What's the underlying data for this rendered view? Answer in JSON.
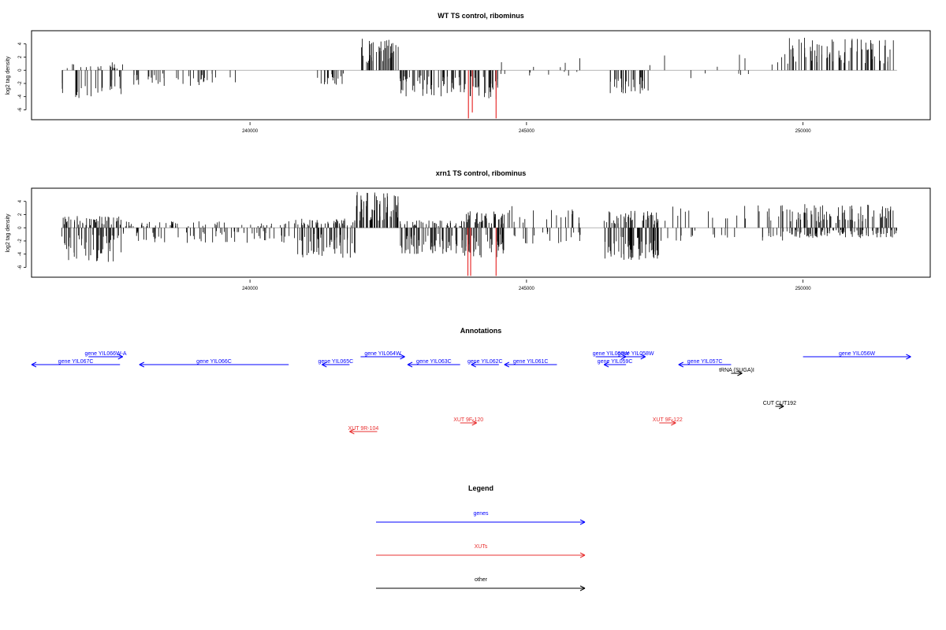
{
  "chart_data": [
    {
      "type": "bar",
      "title": "WT TS control, ribominus",
      "ylabel": "log2 tag density",
      "ylim": [
        -7.5,
        6
      ],
      "yticks": [
        "-6",
        "-4",
        "-2",
        "0",
        "2",
        "4"
      ],
      "xlim": [
        236050,
        252300
      ],
      "xticks": [
        "240000",
        "245000",
        "250000"
      ],
      "clusters": [
        {
          "start": 236600,
          "end": 237700,
          "density": 0.55,
          "minVal": -4.5,
          "maxVal": 1.2
        },
        {
          "start": 237700,
          "end": 239800,
          "density": 0.25,
          "minVal": -2.4,
          "maxVal": 0
        },
        {
          "start": 241200,
          "end": 241700,
          "density": 0.5,
          "minVal": -2.2,
          "maxVal": 0
        },
        {
          "start": 242000,
          "end": 242700,
          "density": 0.8,
          "minVal": 0,
          "maxVal": 4.8
        },
        {
          "start": 242700,
          "end": 243900,
          "density": 0.6,
          "minVal": -4.0,
          "maxVal": 0
        },
        {
          "start": 243900,
          "end": 244500,
          "density": 0.7,
          "minVal": -4.5,
          "maxVal": 0
        },
        {
          "start": 244500,
          "end": 246000,
          "density": 0.12,
          "minVal": -1.2,
          "maxVal": 2.0
        },
        {
          "start": 246500,
          "end": 247200,
          "density": 0.6,
          "minVal": -3.8,
          "maxVal": 0
        },
        {
          "start": 247200,
          "end": 249700,
          "density": 0.08,
          "minVal": -1.2,
          "maxVal": 2.6
        },
        {
          "start": 249700,
          "end": 251700,
          "density": 0.5,
          "minVal": 0,
          "maxVal": 5.0
        }
      ],
      "highlights": [
        {
          "x": 243950,
          "value": -7.3
        },
        {
          "x": 244020,
          "value": -6.4
        },
        {
          "x": 244450,
          "value": -7.3
        }
      ],
      "colors": {
        "bars": "#000000",
        "highlight": "#e83030",
        "axis": "#888888"
      }
    },
    {
      "type": "bar",
      "title": "xrn1 TS control, ribominus",
      "ylabel": "log2 tag density",
      "ylim": [
        -7.5,
        6
      ],
      "yticks": [
        "-6",
        "-4",
        "-2",
        "0",
        "2",
        "4"
      ],
      "xlim": [
        236050,
        252300
      ],
      "xticks": [
        "240000",
        "245000",
        "250000"
      ],
      "clusters": [
        {
          "start": 236600,
          "end": 237700,
          "density": 1.2,
          "minVal": -5.3,
          "maxVal": 1.8
        },
        {
          "start": 237700,
          "end": 240800,
          "density": 0.5,
          "minVal": -2.3,
          "maxVal": 1.0
        },
        {
          "start": 240800,
          "end": 241900,
          "density": 1.2,
          "minVal": -4.6,
          "maxVal": 1.4
        },
        {
          "start": 241900,
          "end": 242700,
          "density": 1.0,
          "minVal": 0,
          "maxVal": 5.5
        },
        {
          "start": 242700,
          "end": 243900,
          "density": 1.2,
          "minVal": -4.3,
          "maxVal": 1.2
        },
        {
          "start": 243900,
          "end": 244600,
          "density": 1.5,
          "minVal": -4.5,
          "maxVal": 2.6
        },
        {
          "start": 244600,
          "end": 246000,
          "density": 0.4,
          "minVal": -2.4,
          "maxVal": 3.4
        },
        {
          "start": 246400,
          "end": 247400,
          "density": 1.5,
          "minVal": -5.0,
          "maxVal": 2.6
        },
        {
          "start": 247400,
          "end": 249700,
          "density": 0.3,
          "minVal": -2.0,
          "maxVal": 3.5
        },
        {
          "start": 249700,
          "end": 251700,
          "density": 1.2,
          "minVal": -1.6,
          "maxVal": 3.6
        }
      ],
      "highlights": [
        {
          "x": 243940,
          "value": -7.3
        },
        {
          "x": 243990,
          "value": -7.3
        },
        {
          "x": 244450,
          "value": -7.3
        }
      ],
      "colors": {
        "bars": "#000000",
        "highlight": "#e83030",
        "axis": "#888888"
      }
    }
  ],
  "annotations": {
    "title": "Annotations",
    "items": [
      {
        "label": "gene YIL067C",
        "start": 237650,
        "end": 236050,
        "dir": "left",
        "color": "#0000ff",
        "row": "upper2"
      },
      {
        "label": "gene YIL066W-A",
        "start": 237080,
        "end": 237700,
        "dir": "right",
        "color": "#0000ff",
        "row": "upper1"
      },
      {
        "label": "gene YIL066C",
        "start": 240700,
        "end": 238000,
        "dir": "left",
        "color": "#0000ff",
        "row": "upper2"
      },
      {
        "label": "gene YIL065C",
        "start": 241800,
        "end": 241300,
        "dir": "left",
        "color": "#0000ff",
        "row": "upper2"
      },
      {
        "label": "gene YIL064W",
        "start": 242000,
        "end": 242800,
        "dir": "right",
        "color": "#0000ff",
        "row": "upper1"
      },
      {
        "label": "gene YIL063C",
        "start": 243800,
        "end": 242850,
        "dir": "left",
        "color": "#0000ff",
        "row": "upper2"
      },
      {
        "label": "gene YIL062C",
        "start": 244500,
        "end": 244000,
        "dir": "left",
        "color": "#0000ff",
        "row": "upper2"
      },
      {
        "label": "gene YIL061C",
        "start": 245550,
        "end": 244600,
        "dir": "left",
        "color": "#0000ff",
        "row": "upper2"
      },
      {
        "label": "gene YIL060W",
        "start": 246250,
        "end": 246800,
        "dir": "right",
        "color": "#0000ff",
        "row": "upper1"
      },
      {
        "label": "gene YIL058W",
        "start": 246800,
        "end": 247150,
        "dir": "right",
        "color": "#0000ff",
        "row": "upper1"
      },
      {
        "label": "gene YIL059C",
        "start": 246800,
        "end": 246400,
        "dir": "left",
        "color": "#0000ff",
        "row": "upper2b"
      },
      {
        "label": "gene YIL057C",
        "start": 248700,
        "end": 247750,
        "dir": "left",
        "color": "#0000ff",
        "row": "upper2"
      },
      {
        "label": "tRNA (SUGA)I",
        "start": 248700,
        "end": 248900,
        "dir": "right",
        "color": "#000000",
        "row": "upper3"
      },
      {
        "label": "gene YIL056W",
        "start": 250000,
        "end": 251950,
        "dir": "right",
        "color": "#0000ff",
        "row": "upper1"
      },
      {
        "label": "CUT CUT192",
        "start": 249500,
        "end": 249650,
        "dir": "right",
        "color": "#000000",
        "row": "mid"
      },
      {
        "label": "XUT 9F-120",
        "start": 243800,
        "end": 244100,
        "dir": "right",
        "color": "#e83030",
        "row": "low1"
      },
      {
        "label": "XUT 9R-104",
        "start": 242300,
        "end": 241800,
        "dir": "left",
        "color": "#e83030",
        "row": "low2"
      },
      {
        "label": "XUT 9F-122",
        "start": 247400,
        "end": 247700,
        "dir": "right",
        "color": "#e83030",
        "row": "low1"
      }
    ]
  },
  "legend": {
    "title": "Legend",
    "items": [
      {
        "label": "genes",
        "color": "#0000ff"
      },
      {
        "label": "XUTs",
        "color": "#e83030"
      },
      {
        "label": "other",
        "color": "#000000"
      }
    ]
  }
}
